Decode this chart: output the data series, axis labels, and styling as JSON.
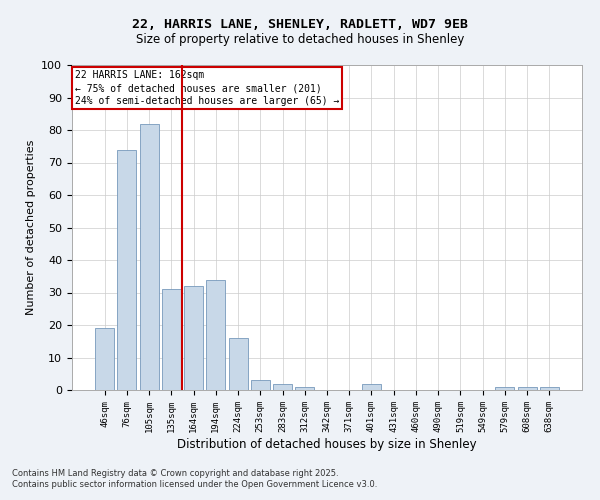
{
  "title_line1": "22, HARRIS LANE, SHENLEY, RADLETT, WD7 9EB",
  "title_line2": "Size of property relative to detached houses in Shenley",
  "xlabel": "Distribution of detached houses by size in Shenley",
  "ylabel": "Number of detached properties",
  "categories": [
    "46sqm",
    "76sqm",
    "105sqm",
    "135sqm",
    "164sqm",
    "194sqm",
    "224sqm",
    "253sqm",
    "283sqm",
    "312sqm",
    "342sqm",
    "371sqm",
    "401sqm",
    "431sqm",
    "460sqm",
    "490sqm",
    "519sqm",
    "549sqm",
    "579sqm",
    "608sqm",
    "638sqm"
  ],
  "values": [
    19,
    74,
    82,
    31,
    32,
    34,
    16,
    3,
    2,
    1,
    0,
    0,
    2,
    0,
    0,
    0,
    0,
    0,
    1,
    1,
    1
  ],
  "bar_color": "#c8d8e8",
  "bar_edge_color": "#7799bb",
  "vline_color": "#cc0000",
  "annotation_text": "22 HARRIS LANE: 162sqm\n← 75% of detached houses are smaller (201)\n24% of semi-detached houses are larger (65) →",
  "annotation_box_color": "#cc0000",
  "ylim": [
    0,
    100
  ],
  "yticks": [
    0,
    10,
    20,
    30,
    40,
    50,
    60,
    70,
    80,
    90,
    100
  ],
  "footnote1": "Contains HM Land Registry data © Crown copyright and database right 2025.",
  "footnote2": "Contains public sector information licensed under the Open Government Licence v3.0.",
  "bg_color": "#eef2f7",
  "plot_bg_color": "#ffffff",
  "grid_color": "#cccccc"
}
